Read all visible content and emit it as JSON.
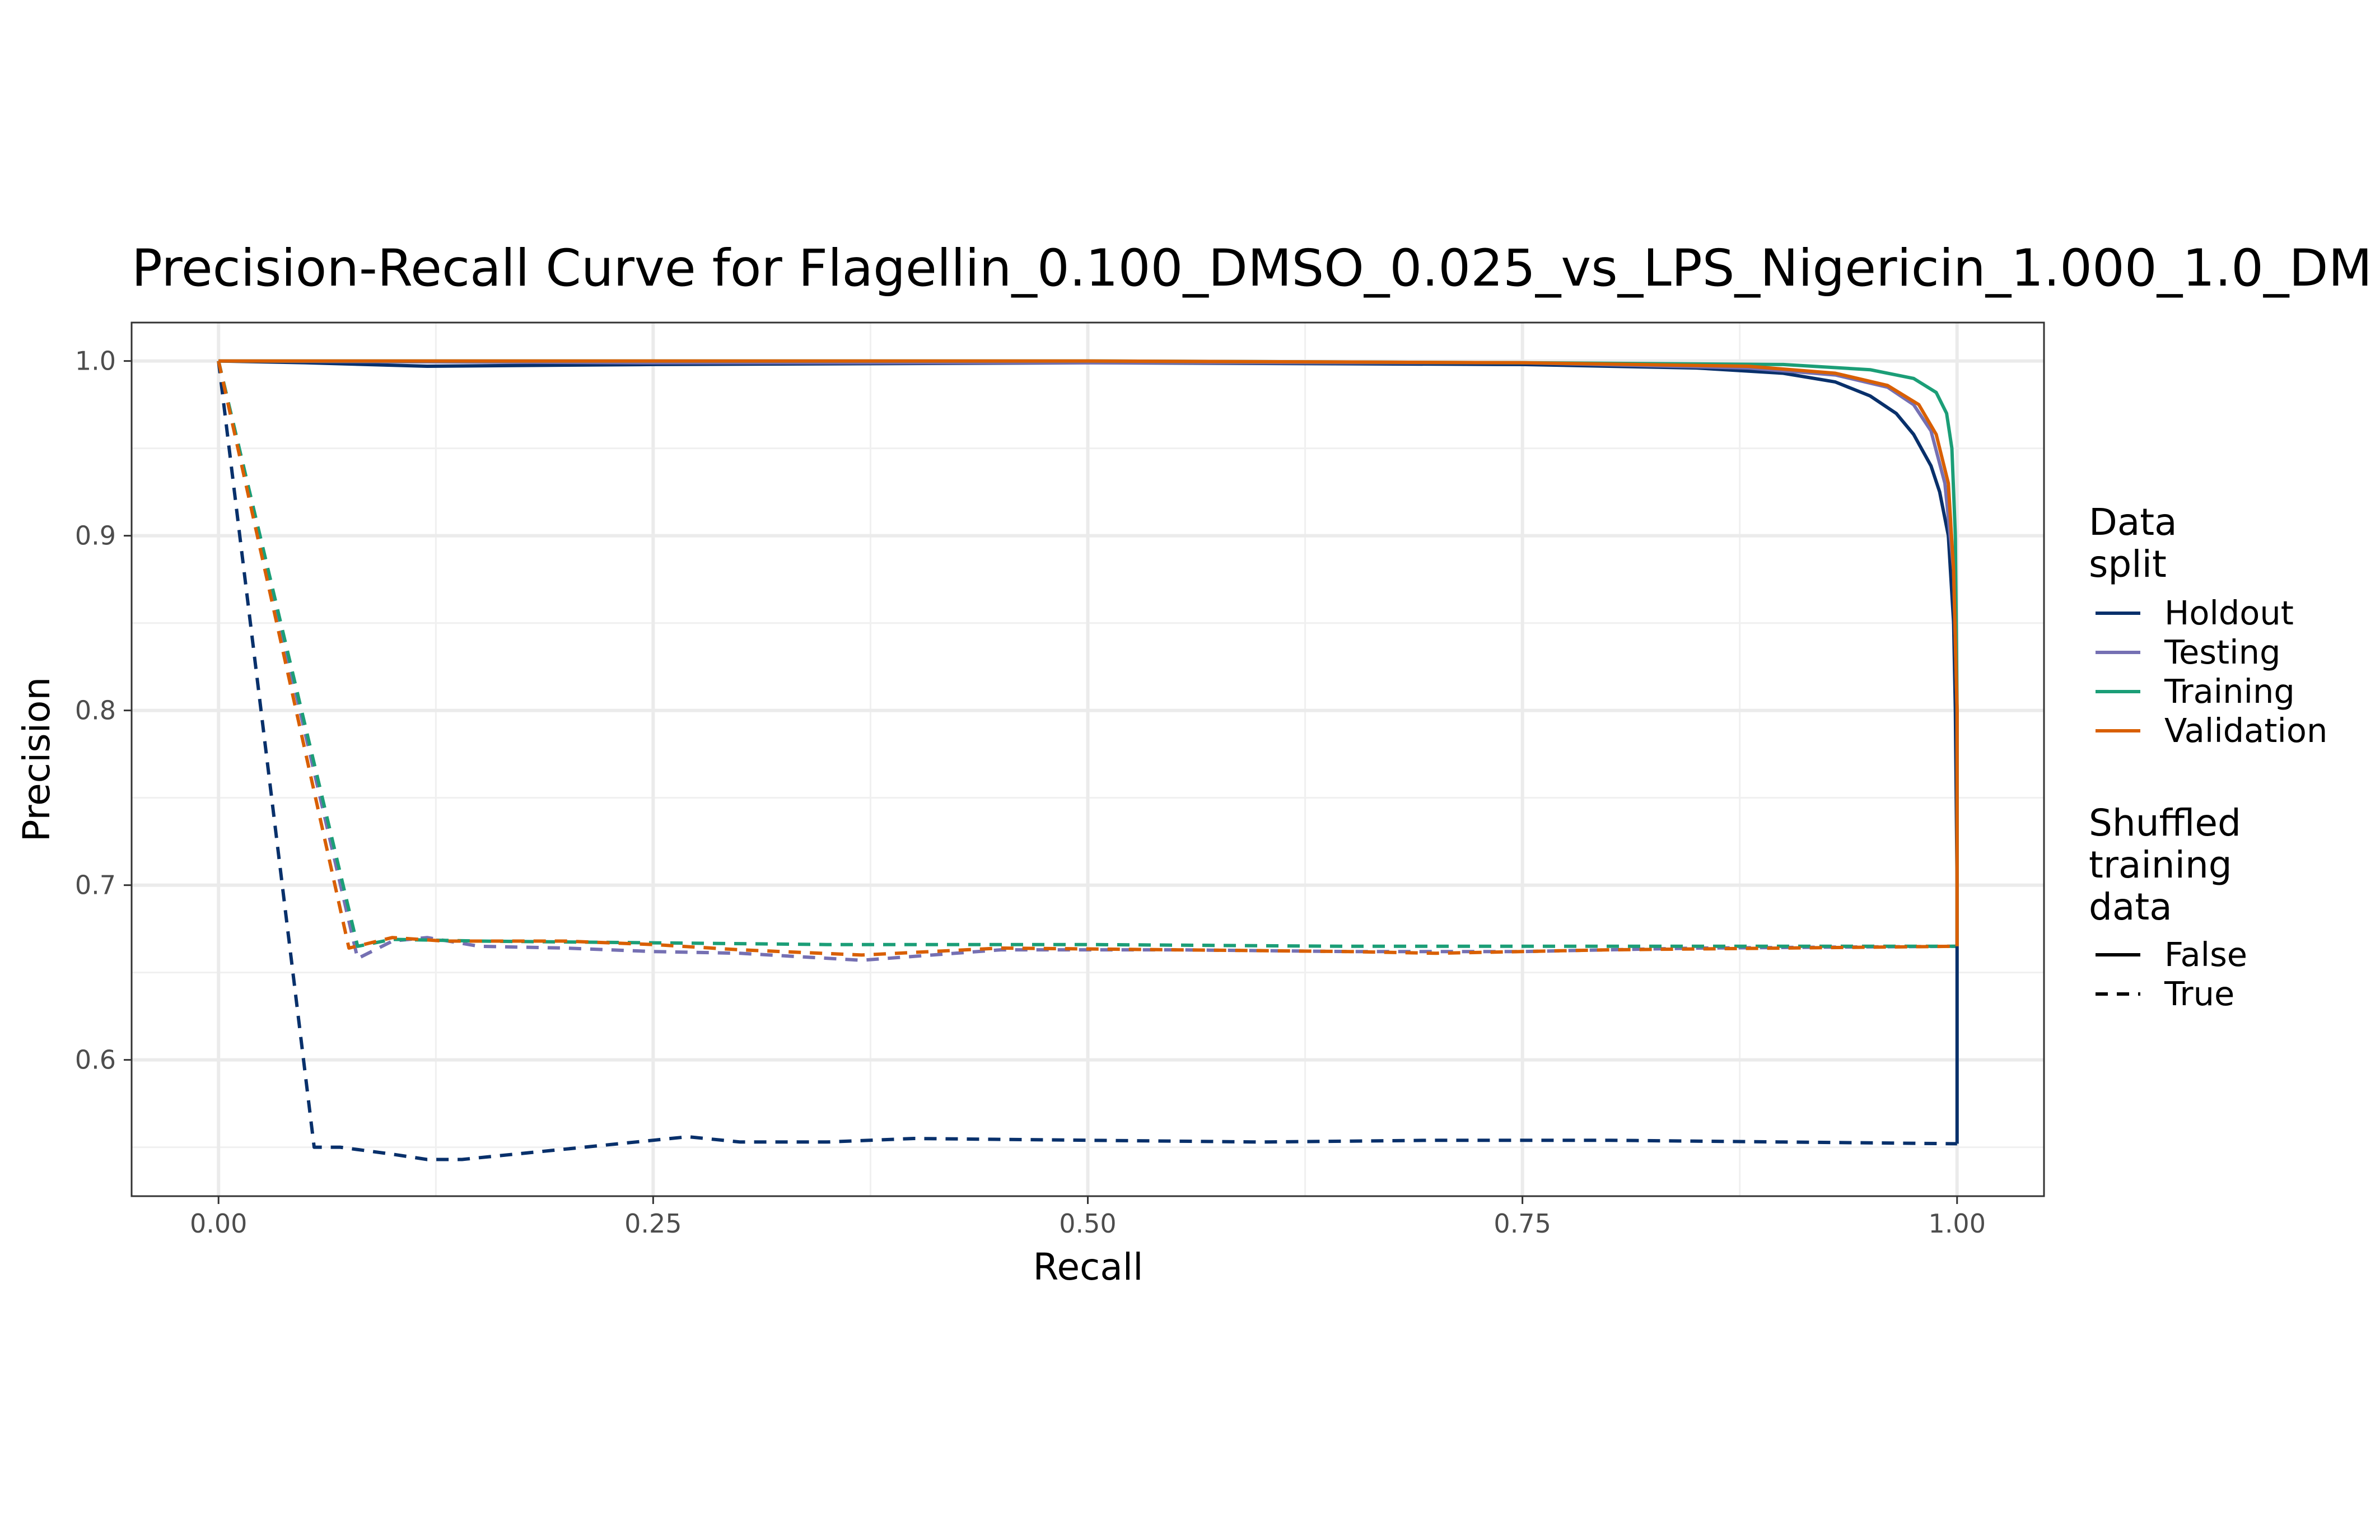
{
  "chart_data": {
    "type": "line",
    "title": "Precision-Recall Curve for Flagellin_0.100_DMSO_0.025_vs_LPS_Nigericin_1.000_1.0_DM",
    "xlabel": "Recall",
    "ylabel": "Precision",
    "xlim": [
      -0.05,
      1.05
    ],
    "ylim": [
      0.522,
      1.022
    ],
    "x_ticks": [
      0.0,
      0.25,
      0.5,
      0.75,
      1.0
    ],
    "x_tick_labels": [
      "0.00",
      "0.25",
      "0.50",
      "0.75",
      "1.00"
    ],
    "y_ticks": [
      0.6,
      0.7,
      0.8,
      0.9,
      1.0
    ],
    "y_tick_labels": [
      "0.6",
      "0.7",
      "0.8",
      "0.9",
      "1.0"
    ],
    "grid": true,
    "legend_position": "right",
    "legend": {
      "color_title": "Data split",
      "color_title_lines": [
        "Data",
        "split"
      ],
      "linetype_title": "Shuffled training data",
      "linetype_title_lines": [
        "Shuffled",
        "training",
        "data"
      ],
      "color_entries": [
        {
          "label": "Holdout",
          "color": "#08306b"
        },
        {
          "label": "Testing",
          "color": "#7570b3"
        },
        {
          "label": "Training",
          "color": "#1b9e77"
        },
        {
          "label": "Validation",
          "color": "#d95f02"
        }
      ],
      "linetype_entries": [
        {
          "label": "False",
          "dash": "solid"
        },
        {
          "label": "True",
          "dash": "dashed"
        }
      ]
    },
    "series": [
      {
        "name": "Holdout",
        "shuffled": "False",
        "color": "#08306b",
        "dashed": false,
        "points": [
          [
            0,
            1.0
          ],
          [
            0.05,
            0.999
          ],
          [
            0.12,
            0.997
          ],
          [
            0.25,
            0.998
          ],
          [
            0.5,
            0.999
          ],
          [
            0.75,
            0.998
          ],
          [
            0.85,
            0.996
          ],
          [
            0.9,
            0.993
          ],
          [
            0.93,
            0.988
          ],
          [
            0.95,
            0.98
          ],
          [
            0.965,
            0.97
          ],
          [
            0.975,
            0.958
          ],
          [
            0.985,
            0.94
          ],
          [
            0.99,
            0.925
          ],
          [
            0.995,
            0.9
          ],
          [
            0.998,
            0.85
          ],
          [
            0.999,
            0.8
          ],
          [
            1.0,
            0.7
          ],
          [
            1.0,
            0.552
          ]
        ]
      },
      {
        "name": "Testing",
        "shuffled": "False",
        "color": "#7570b3",
        "dashed": false,
        "points": [
          [
            0,
            1.0
          ],
          [
            0.25,
            0.999
          ],
          [
            0.5,
            0.999
          ],
          [
            0.75,
            0.999
          ],
          [
            0.88,
            0.996
          ],
          [
            0.93,
            0.992
          ],
          [
            0.96,
            0.985
          ],
          [
            0.975,
            0.975
          ],
          [
            0.985,
            0.96
          ],
          [
            0.993,
            0.93
          ],
          [
            0.998,
            0.88
          ],
          [
            1.0,
            0.8
          ],
          [
            1.0,
            0.665
          ]
        ]
      },
      {
        "name": "Training",
        "shuffled": "False",
        "color": "#1b9e77",
        "dashed": false,
        "points": [
          [
            0,
            1.0
          ],
          [
            0.25,
            1.0
          ],
          [
            0.5,
            1.0
          ],
          [
            0.75,
            0.999
          ],
          [
            0.9,
            0.998
          ],
          [
            0.95,
            0.995
          ],
          [
            0.975,
            0.99
          ],
          [
            0.988,
            0.982
          ],
          [
            0.994,
            0.97
          ],
          [
            0.997,
            0.95
          ],
          [
            0.999,
            0.9
          ],
          [
            1.0,
            0.8
          ],
          [
            1.0,
            0.665
          ]
        ]
      },
      {
        "name": "Validation",
        "shuffled": "False",
        "color": "#d95f02",
        "dashed": false,
        "points": [
          [
            0,
            1.0
          ],
          [
            0.25,
            1.0
          ],
          [
            0.5,
            1.0
          ],
          [
            0.75,
            0.999
          ],
          [
            0.88,
            0.997
          ],
          [
            0.93,
            0.993
          ],
          [
            0.96,
            0.986
          ],
          [
            0.978,
            0.975
          ],
          [
            0.988,
            0.958
          ],
          [
            0.995,
            0.93
          ],
          [
            0.998,
            0.88
          ],
          [
            1.0,
            0.8
          ],
          [
            1.0,
            0.665
          ]
        ]
      },
      {
        "name": "Holdout",
        "shuffled": "True",
        "color": "#08306b",
        "dashed": true,
        "points": [
          [
            0,
            1.0
          ],
          [
            0.055,
            0.55
          ],
          [
            0.07,
            0.55
          ],
          [
            0.1,
            0.546
          ],
          [
            0.12,
            0.543
          ],
          [
            0.14,
            0.543
          ],
          [
            0.16,
            0.545
          ],
          [
            0.2,
            0.549
          ],
          [
            0.25,
            0.554
          ],
          [
            0.27,
            0.556
          ],
          [
            0.3,
            0.553
          ],
          [
            0.35,
            0.553
          ],
          [
            0.4,
            0.555
          ],
          [
            0.5,
            0.554
          ],
          [
            0.6,
            0.553
          ],
          [
            0.7,
            0.554
          ],
          [
            0.8,
            0.554
          ],
          [
            0.9,
            0.553
          ],
          [
            1.0,
            0.552
          ]
        ]
      },
      {
        "name": "Testing",
        "shuffled": "True",
        "color": "#7570b3",
        "dashed": true,
        "points": [
          [
            0,
            1.0
          ],
          [
            0.08,
            0.658
          ],
          [
            0.1,
            0.668
          ],
          [
            0.12,
            0.67
          ],
          [
            0.15,
            0.665
          ],
          [
            0.2,
            0.664
          ],
          [
            0.25,
            0.662
          ],
          [
            0.3,
            0.661
          ],
          [
            0.37,
            0.657
          ],
          [
            0.45,
            0.663
          ],
          [
            0.55,
            0.663
          ],
          [
            0.65,
            0.662
          ],
          [
            0.75,
            0.662
          ],
          [
            0.85,
            0.664
          ],
          [
            1.0,
            0.665
          ]
        ]
      },
      {
        "name": "Training",
        "shuffled": "True",
        "color": "#1b9e77",
        "dashed": true,
        "points": [
          [
            0,
            1.0
          ],
          [
            0.08,
            0.665
          ],
          [
            0.1,
            0.669
          ],
          [
            0.15,
            0.668
          ],
          [
            0.25,
            0.667
          ],
          [
            0.35,
            0.666
          ],
          [
            0.5,
            0.666
          ],
          [
            0.65,
            0.665
          ],
          [
            0.8,
            0.665
          ],
          [
            1.0,
            0.665
          ]
        ]
      },
      {
        "name": "Validation",
        "shuffled": "True",
        "color": "#d95f02",
        "dashed": true,
        "points": [
          [
            0,
            1.0
          ],
          [
            0.075,
            0.664
          ],
          [
            0.1,
            0.67
          ],
          [
            0.13,
            0.668
          ],
          [
            0.2,
            0.668
          ],
          [
            0.25,
            0.666
          ],
          [
            0.3,
            0.663
          ],
          [
            0.37,
            0.66
          ],
          [
            0.45,
            0.664
          ],
          [
            0.55,
            0.663
          ],
          [
            0.65,
            0.662
          ],
          [
            0.7,
            0.661
          ],
          [
            0.8,
            0.663
          ],
          [
            0.9,
            0.664
          ],
          [
            1.0,
            0.665
          ]
        ]
      }
    ]
  }
}
